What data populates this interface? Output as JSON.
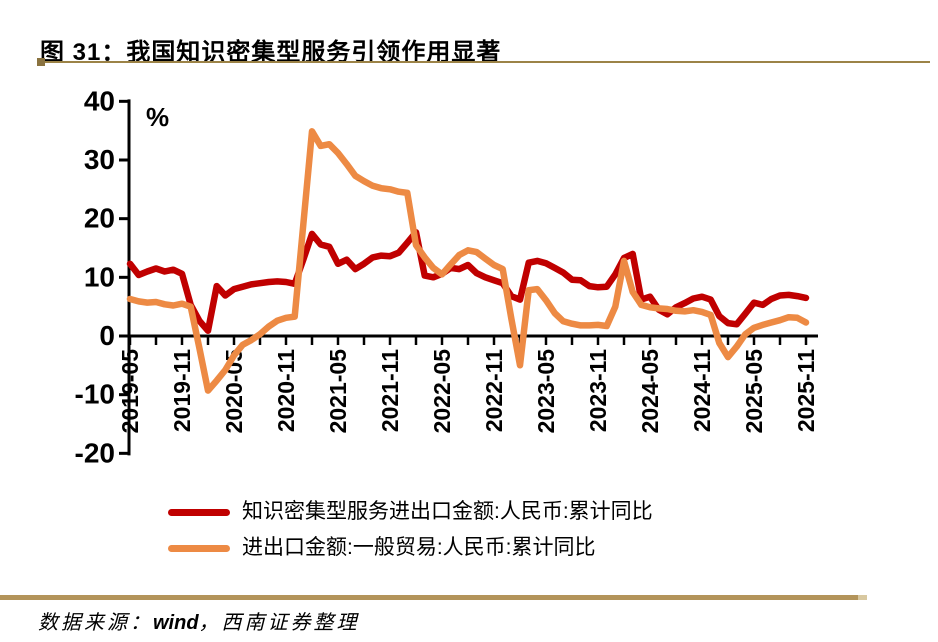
{
  "header": {
    "title": "图 31：我国知识密集型服务引领作用显著"
  },
  "footer": {
    "source_prefix": "数据来源：",
    "source_wind": "wind",
    "source_suffix": "，西南证券整理"
  },
  "accents": {
    "gold_line": "#9c8347",
    "gold_bar": "#b3945a",
    "axis_color": "#000000"
  },
  "chart_data": {
    "type": "line",
    "title": "我国知识密集型服务引领作用显著",
    "unit_label": "%",
    "xlabel": "",
    "ylabel": "%",
    "ylim": [
      -20,
      40
    ],
    "grid": false,
    "legend_position": "bottom",
    "y_ticks": [
      40,
      30,
      20,
      10,
      0,
      -10,
      -20
    ],
    "x_tick_labels": [
      "2019-05",
      "2019-11",
      "2020-05",
      "2020-11",
      "2021-05",
      "2021-11",
      "2022-05",
      "2022-11",
      "2023-05",
      "2023-11",
      "2024-05",
      "2024-11",
      "2025-05",
      "2025-11"
    ],
    "x": [
      "2019-05",
      "2019-06",
      "2019-07",
      "2019-08",
      "2019-09",
      "2019-10",
      "2019-11",
      "2019-12",
      "2020-01",
      "2020-02",
      "2020-03",
      "2020-04",
      "2020-05",
      "2020-06",
      "2020-07",
      "2020-08",
      "2020-09",
      "2020-10",
      "2020-11",
      "2020-12",
      "2021-01",
      "2021-02",
      "2021-03",
      "2021-04",
      "2021-05",
      "2021-06",
      "2021-07",
      "2021-08",
      "2021-09",
      "2021-10",
      "2021-11",
      "2021-12",
      "2022-01",
      "2022-02",
      "2022-03",
      "2022-04",
      "2022-05",
      "2022-06",
      "2022-07",
      "2022-08",
      "2022-09",
      "2022-10",
      "2022-11",
      "2022-12",
      "2023-01",
      "2023-02",
      "2023-03",
      "2023-04",
      "2023-05",
      "2023-06",
      "2023-07",
      "2023-08",
      "2023-09",
      "2023-10",
      "2023-11",
      "2023-12",
      "2024-01",
      "2024-02",
      "2024-03",
      "2024-04",
      "2024-05",
      "2024-06",
      "2024-07",
      "2024-08",
      "2024-09",
      "2024-10",
      "2024-11",
      "2024-12",
      "2025-01",
      "2025-02",
      "2025-03",
      "2025-04",
      "2025-05",
      "2025-06",
      "2025-07",
      "2025-08",
      "2025-09",
      "2025-10",
      "2025-11"
    ],
    "series": [
      {
        "name": "知识密集型服务进出口金额:人民币:累计同比",
        "color": "#c00000",
        "values": [
          12.3,
          10.4,
          11.0,
          11.5,
          11.0,
          11.3,
          10.6,
          5.3,
          2.6,
          0.9,
          8.5,
          6.9,
          8.0,
          8.4,
          8.8,
          9.0,
          9.2,
          9.3,
          9.2,
          8.9,
          13.0,
          17.4,
          15.6,
          15.2,
          12.3,
          13.0,
          11.4,
          12.3,
          13.4,
          13.7,
          13.6,
          14.2,
          15.9,
          17.7,
          10.3,
          10.0,
          10.6,
          11.6,
          11.4,
          12.1,
          10.7,
          10.0,
          9.5,
          9.0,
          6.8,
          6.2,
          12.5,
          12.8,
          12.4,
          11.6,
          10.8,
          9.6,
          9.5,
          8.5,
          8.3,
          8.4,
          10.5,
          13.3,
          14.0,
          6.2,
          6.7,
          4.5,
          3.7,
          4.9,
          5.6,
          6.4,
          6.7,
          6.2,
          3.4,
          2.2,
          2.0,
          3.8,
          5.7,
          5.3,
          6.3,
          6.9,
          7.0,
          6.8,
          6.5
        ]
      },
      {
        "name": "进出口金额:一般贸易:人民币:累计同比",
        "color": "#ed8a44",
        "values": [
          6.3,
          5.9,
          5.7,
          5.8,
          5.4,
          5.2,
          5.5,
          5.0,
          -2.0,
          -9.3,
          -7.6,
          -5.8,
          -3.3,
          -1.5,
          -0.7,
          0.3,
          1.6,
          2.6,
          3.1,
          3.3,
          19.0,
          34.9,
          32.4,
          32.7,
          31.2,
          29.3,
          27.3,
          26.4,
          25.6,
          25.2,
          25.0,
          24.6,
          24.4,
          15.5,
          13.4,
          11.6,
          10.5,
          12.2,
          13.8,
          14.6,
          14.3,
          13.2,
          12.1,
          11.4,
          3.0,
          -5.0,
          7.8,
          8.0,
          6.1,
          3.9,
          2.5,
          2.1,
          1.8,
          1.8,
          1.9,
          1.7,
          5.0,
          12.8,
          7.5,
          5.3,
          4.9,
          4.7,
          4.6,
          4.3,
          4.2,
          4.4,
          4.1,
          3.6,
          -1.2,
          -3.6,
          -1.8,
          0.3,
          1.4,
          1.9,
          2.3,
          2.7,
          3.2,
          3.1,
          2.3
        ]
      }
    ]
  }
}
